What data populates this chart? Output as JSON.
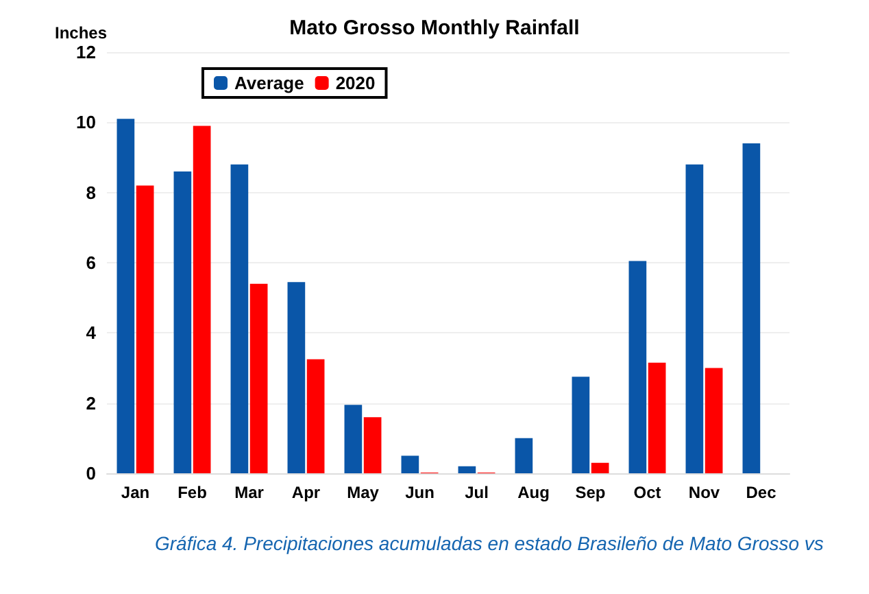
{
  "chart_data": {
    "type": "bar",
    "title": "Mato Grosso Monthly Rainfall",
    "ylabel": "Inches",
    "categories": [
      "Jan",
      "Feb",
      "Mar",
      "Apr",
      "May",
      "Jun",
      "Jul",
      "Aug",
      "Sep",
      "Oct",
      "Nov",
      "Dec"
    ],
    "series": [
      {
        "name": "Average",
        "color": "#0a56a8",
        "values": [
          10.1,
          8.6,
          8.8,
          5.45,
          1.95,
          0.5,
          0.2,
          1.0,
          2.75,
          6.05,
          8.8,
          9.4
        ]
      },
      {
        "name": "2020",
        "color": "#ff0000",
        "values": [
          8.2,
          9.9,
          5.4,
          3.25,
          1.6,
          0.02,
          0.02,
          null,
          0.3,
          3.15,
          3.0,
          null
        ]
      }
    ],
    "ylim": [
      0,
      12
    ],
    "yticks": [
      0,
      2,
      4,
      6,
      8,
      10,
      12
    ],
    "grid": "y",
    "legend": "top left",
    "annotations": [
      "Gráfica 4. Precipitaciones acumuladas en estado Brasileño de Mato Grosso vs"
    ]
  }
}
